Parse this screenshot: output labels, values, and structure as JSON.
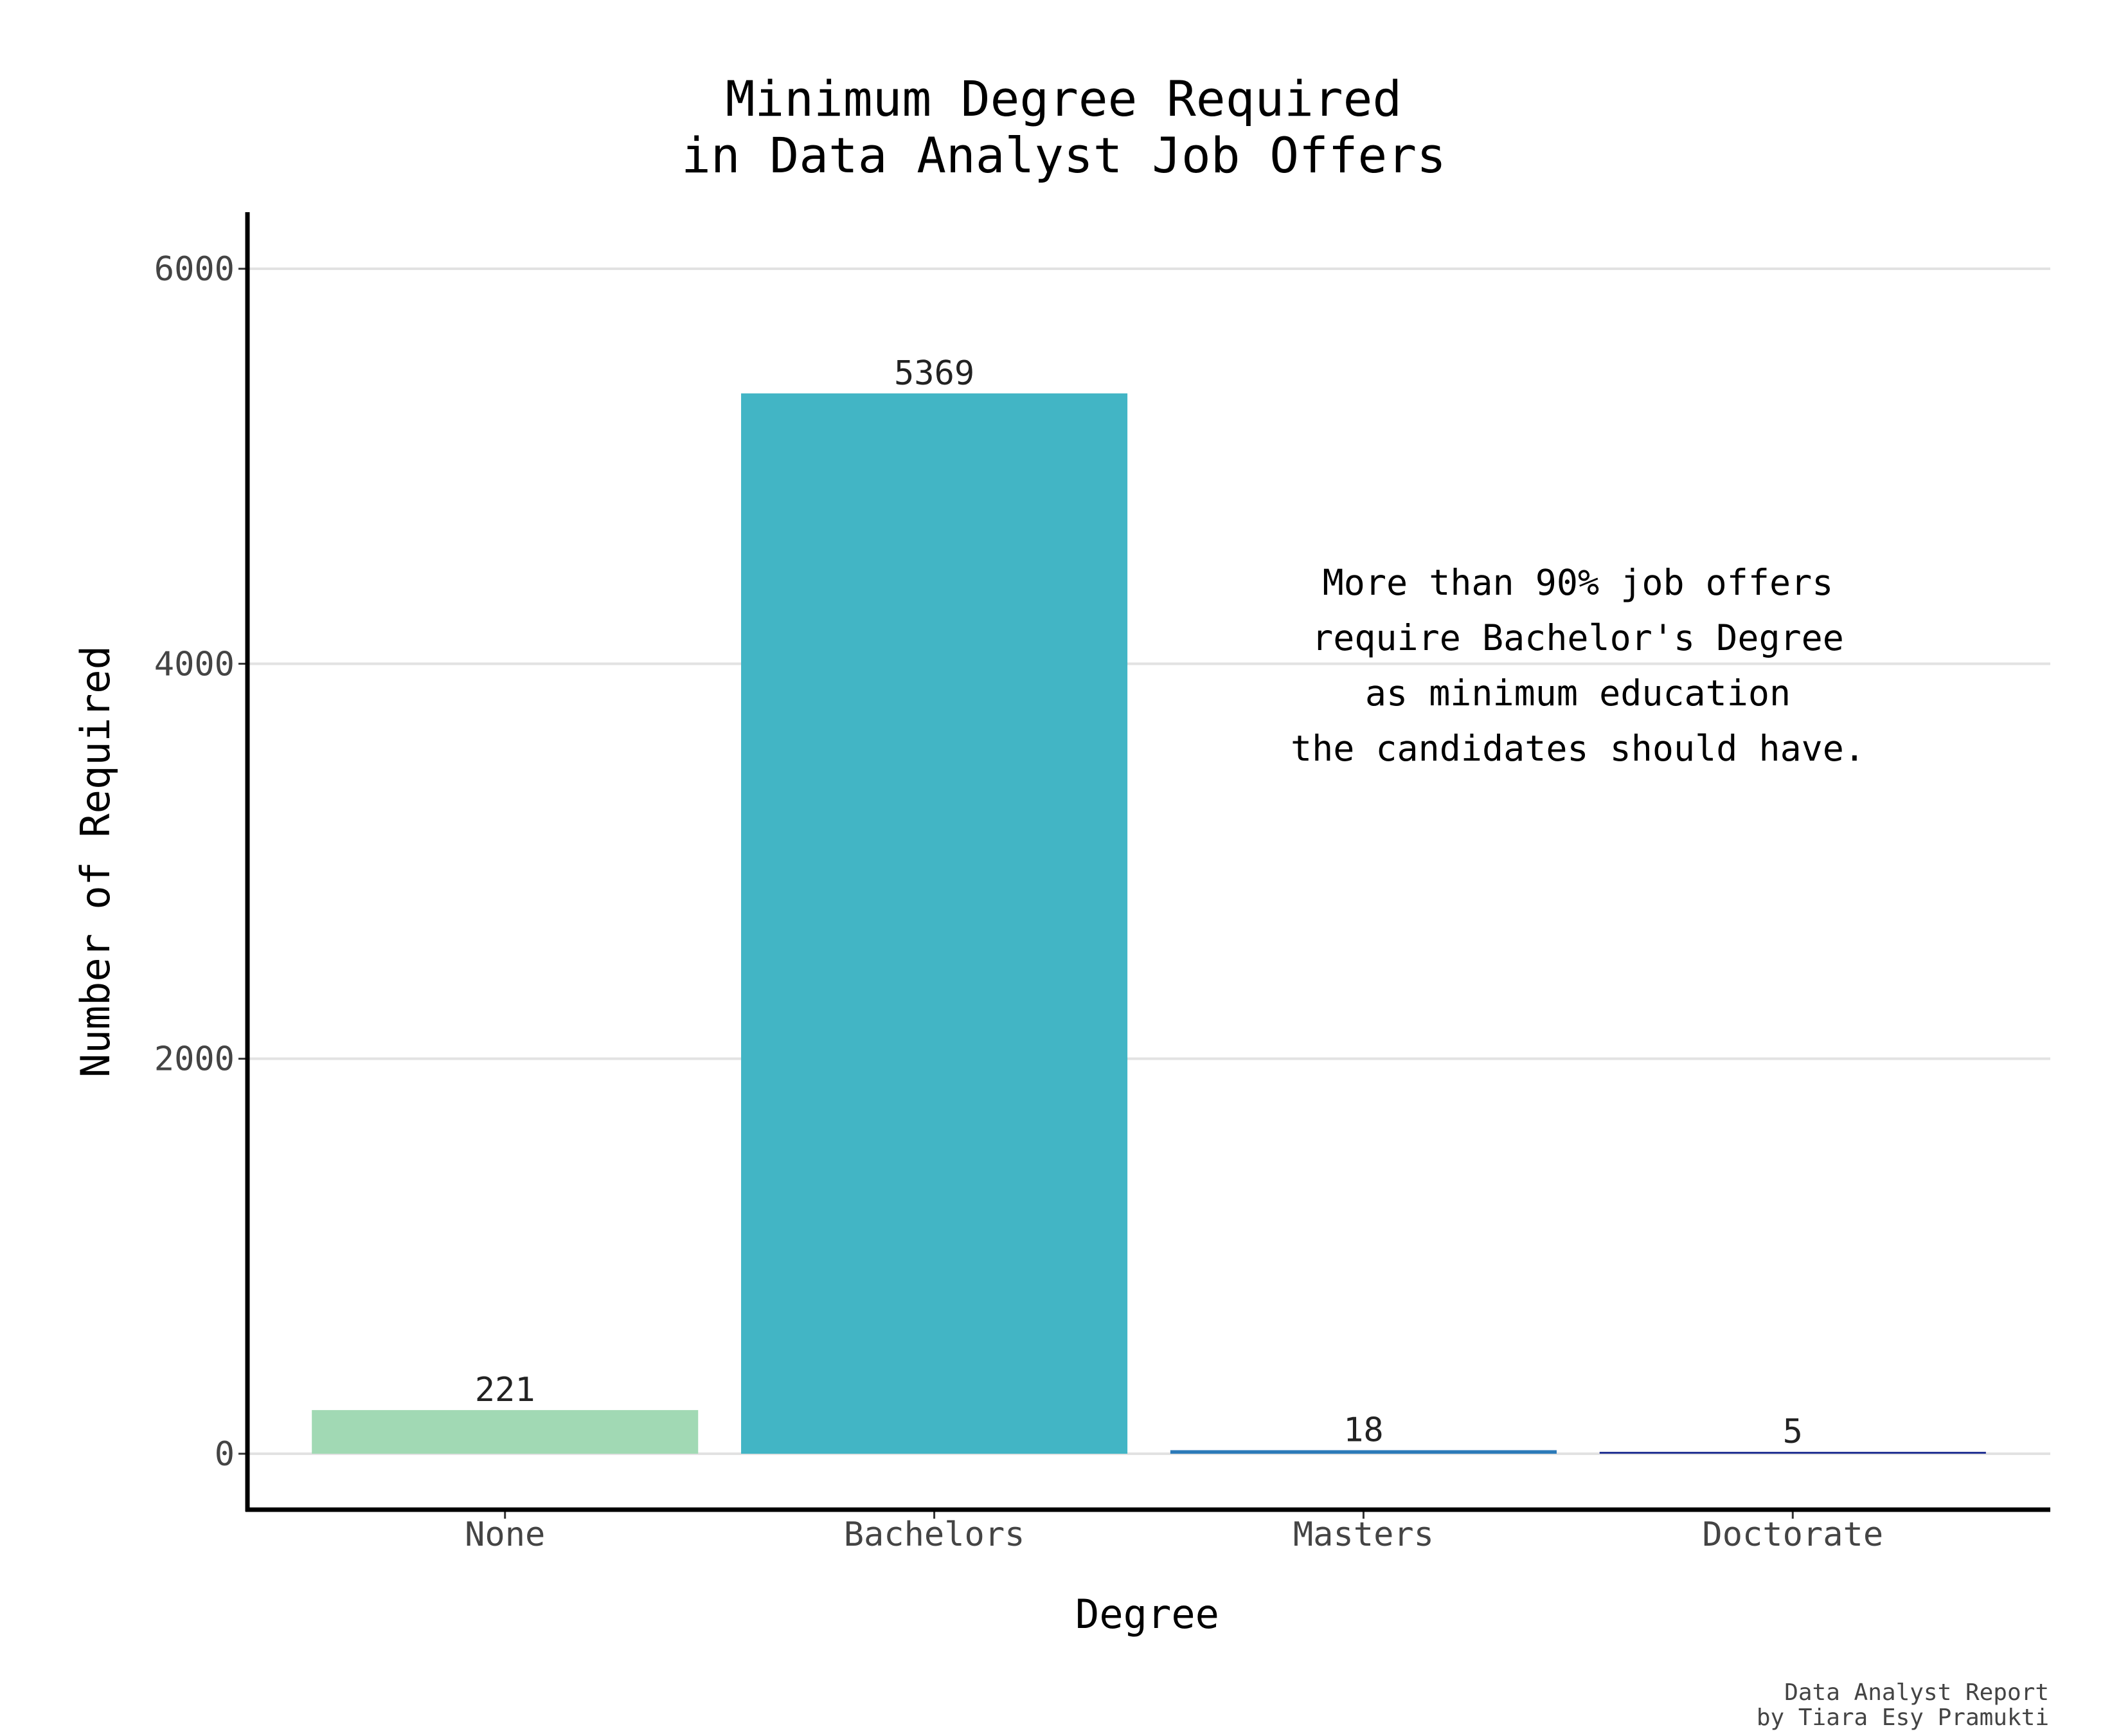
{
  "chart_data": {
    "type": "bar",
    "title": [
      "Minimum Degree Required",
      "in Data Analyst Job Offers"
    ],
    "xlabel": "Degree",
    "ylabel": "Number of Required",
    "categories": [
      "None",
      "Bachelors",
      "Masters",
      "Doctorate"
    ],
    "values": [
      221,
      5369,
      18,
      5
    ],
    "data_labels": [
      "221",
      "5369",
      "18",
      "5"
    ],
    "colors": [
      "#a1d9b4",
      "#42b5c5",
      "#2c7ab8",
      "#253494"
    ],
    "ylim": [
      -290,
      6290
    ],
    "yticks": [
      0,
      2000,
      4000,
      6000
    ],
    "ytick_labels": [
      "0",
      "2000",
      "4000",
      "6000"
    ],
    "grid": "horizontal major",
    "legend": "none",
    "annotation": [
      "More than 90% job offers",
      "require Bachelor's Degree",
      "as minimum education",
      "the candidates should have."
    ],
    "caption": [
      "Data Analyst Report",
      "by Tiara Esy Pramukti"
    ]
  }
}
